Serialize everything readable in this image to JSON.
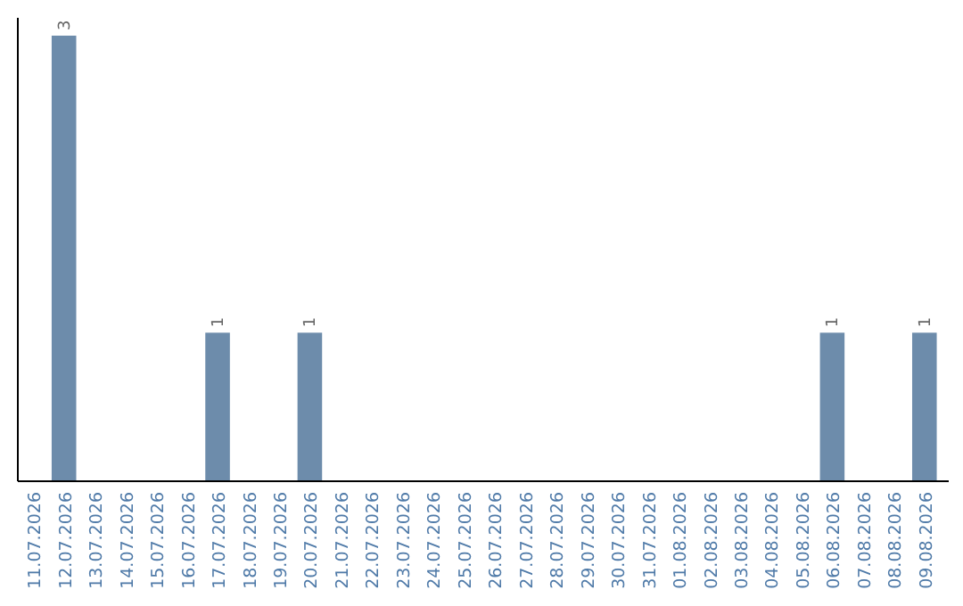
{
  "chart_data": {
    "type": "bar",
    "categories": [
      "11.07.2026",
      "12.07.2026",
      "13.07.2026",
      "14.07.2026",
      "15.07.2026",
      "16.07.2026",
      "17.07.2026",
      "18.07.2026",
      "19.07.2026",
      "20.07.2026",
      "21.07.2026",
      "22.07.2026",
      "23.07.2026",
      "24.07.2026",
      "25.07.2026",
      "26.07.2026",
      "27.07.2026",
      "28.07.2026",
      "29.07.2026",
      "30.07.2026",
      "31.07.2026",
      "01.08.2026",
      "02.08.2026",
      "03.08.2026",
      "04.08.2026",
      "05.08.2026",
      "06.08.2026",
      "07.08.2026",
      "08.08.2026",
      "09.08.2026"
    ],
    "values": [
      0,
      3,
      0,
      0,
      0,
      0,
      1,
      0,
      0,
      1,
      0,
      0,
      0,
      0,
      0,
      0,
      0,
      0,
      0,
      0,
      0,
      0,
      0,
      0,
      0,
      0,
      1,
      0,
      0,
      1
    ],
    "value_labels": [
      null,
      "3",
      null,
      null,
      null,
      null,
      "1",
      null,
      null,
      "1",
      null,
      null,
      null,
      null,
      null,
      null,
      null,
      null,
      null,
      null,
      null,
      null,
      null,
      null,
      null,
      null,
      "1",
      null,
      null,
      "1"
    ],
    "color": "#6d8cab",
    "tick_labels": "x"
  }
}
